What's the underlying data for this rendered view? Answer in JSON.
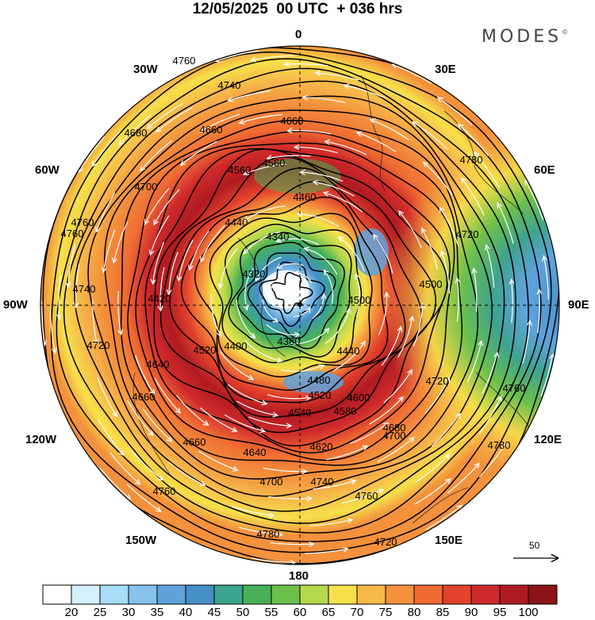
{
  "header": {
    "title": "12/05/2025  00 UTC  + 036 hrs",
    "brand": "MODES",
    "brand_mark": "©"
  },
  "map": {
    "projection": "polar stereographic, north pole",
    "longitude_labels": [
      {
        "id": "0",
        "text": "0"
      },
      {
        "id": "30E",
        "text": "30E"
      },
      {
        "id": "60E",
        "text": "60E"
      },
      {
        "id": "90E",
        "text": "90E"
      },
      {
        "id": "120E",
        "text": "120E"
      },
      {
        "id": "150E",
        "text": "150E"
      },
      {
        "id": "180",
        "text": "180"
      },
      {
        "id": "150W",
        "text": "150W"
      },
      {
        "id": "120W",
        "text": "120W"
      },
      {
        "id": "90W",
        "text": "90W"
      },
      {
        "id": "60W",
        "text": "60W"
      },
      {
        "id": "30W",
        "text": "30W"
      }
    ],
    "contour_labels": [
      "4760",
      "4740",
      "4680",
      "4660",
      "4560",
      "4780",
      "4760",
      "4700",
      "4660",
      "4560",
      "4460",
      "4440",
      "4340",
      "4320",
      "4420",
      "4500",
      "4720",
      "4500",
      "4740",
      "4760",
      "4720",
      "4660",
      "4640",
      "4520",
      "4400",
      "4380",
      "4440",
      "4480",
      "4520",
      "4540",
      "4580",
      "4600",
      "4720",
      "4760",
      "4780",
      "4680",
      "4660",
      "4640",
      "4620",
      "4700",
      "4700",
      "4740",
      "4760",
      "4760",
      "4780",
      "4720"
    ],
    "reference_vector": {
      "value": "50"
    }
  },
  "colorbar": {
    "colors": [
      "#ffffff",
      "#d4f0fc",
      "#a8dcf7",
      "#86c2ec",
      "#5fa3dc",
      "#4590c7",
      "#3ea38f",
      "#48b057",
      "#6cc04b",
      "#b5d84c",
      "#f6e04a",
      "#f7b84a",
      "#f3913c",
      "#ef6a32",
      "#e3422c",
      "#cf2a2b",
      "#b01b22",
      "#8c1418"
    ],
    "labels": [
      "20",
      "25",
      "30",
      "35",
      "40",
      "45",
      "50",
      "55",
      "60",
      "65",
      "70",
      "75",
      "80",
      "85",
      "90",
      "95",
      "100"
    ]
  }
}
